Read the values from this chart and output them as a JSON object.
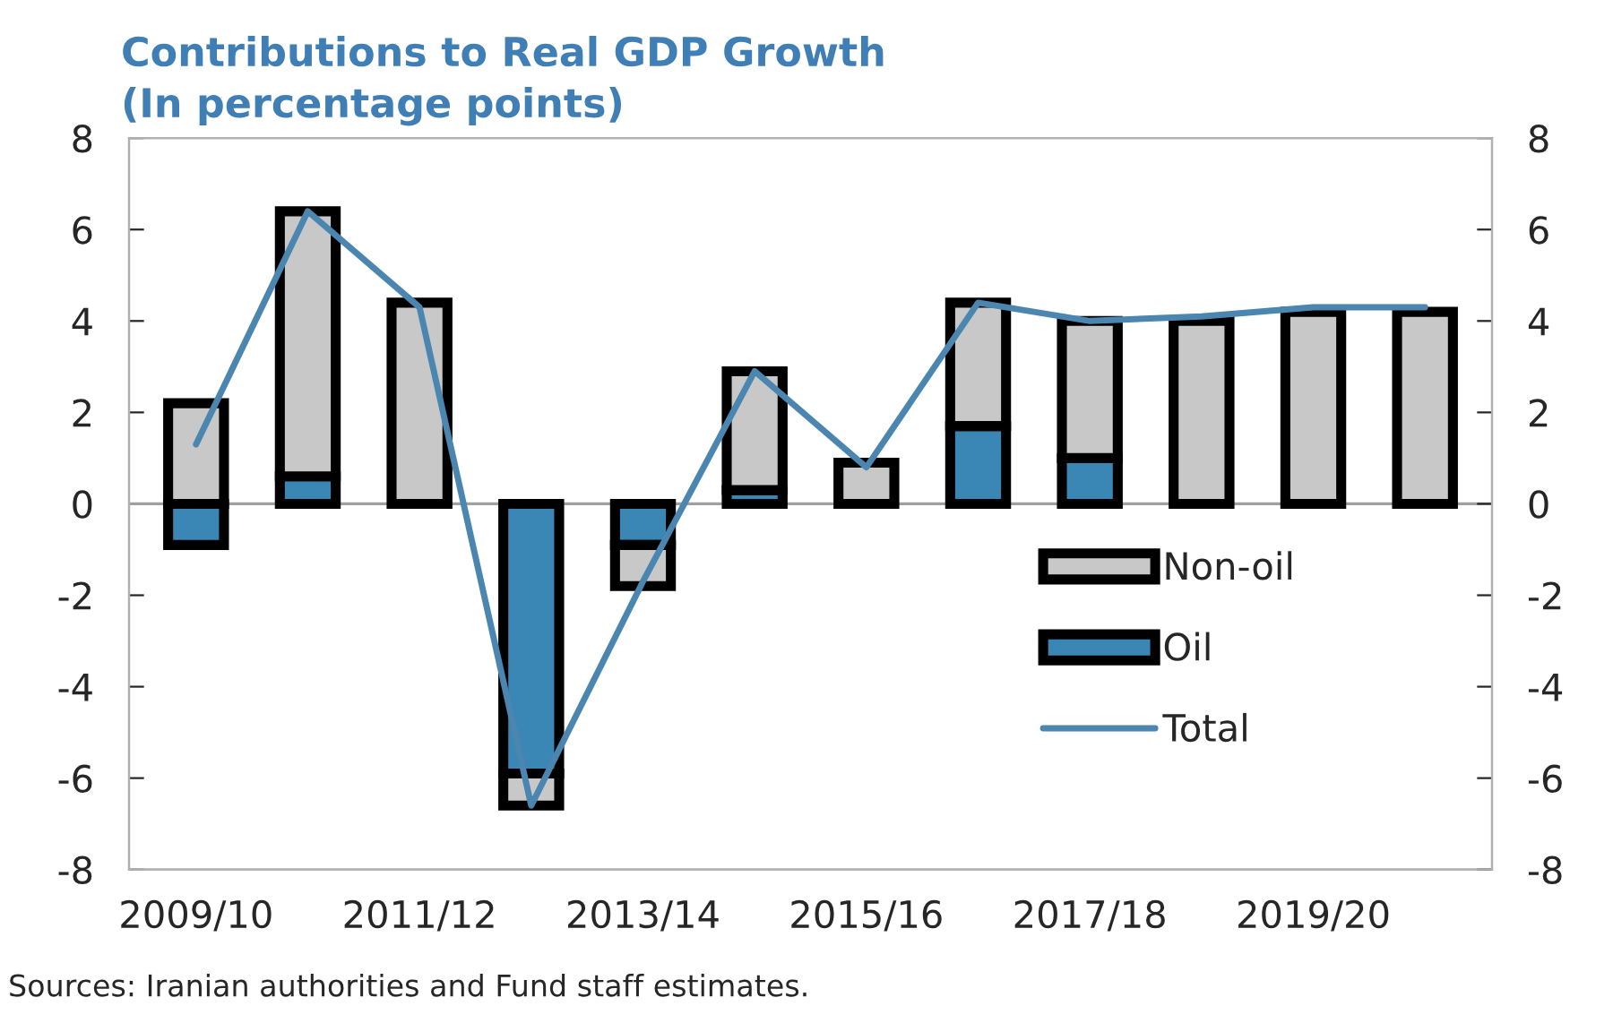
{
  "chart_data": {
    "type": "bar",
    "stacked": true,
    "title": "Contributions to Real GDP Growth",
    "subtitle": "(In percentage points)",
    "categories": [
      "2009/10",
      null,
      "2011/12",
      null,
      "2013/14",
      null,
      "2015/16",
      null,
      "2017/18",
      null,
      "2019/20",
      null
    ],
    "series": [
      {
        "name": "Oil",
        "color": "#3a87b5",
        "values": [
          -0.9,
          0.6,
          null,
          -5.9,
          -0.9,
          0.3,
          null,
          1.7,
          1.0,
          null,
          null,
          null
        ]
      },
      {
        "name": "Non-oil",
        "color": "#c8c8c8",
        "values": [
          2.2,
          5.8,
          4.4,
          -0.7,
          -0.9,
          2.6,
          0.9,
          2.7,
          3.0,
          4.0,
          4.2,
          4.2
        ]
      },
      {
        "name": "Total",
        "type": "line",
        "color": "#4a86b0",
        "values": [
          1.3,
          6.4,
          4.3,
          -6.6,
          -1.7,
          2.9,
          0.8,
          4.4,
          4.0,
          4.1,
          4.3,
          4.3
        ]
      }
    ],
    "ylim": [
      -8,
      8
    ],
    "yticks": [
      -8,
      -6,
      -4,
      -2,
      0,
      2,
      4,
      6,
      8
    ],
    "y2lim": [
      -8,
      8
    ],
    "y2ticks": [
      -8,
      -6,
      -4,
      -2,
      0,
      2,
      4,
      6,
      8
    ],
    "ref_lines": [
      {
        "axis": "y",
        "value": 0,
        "color": "#a0a0a0"
      }
    ],
    "legend": "right",
    "grid": false,
    "annotations": [
      "Sources: Iranian authorities and Fund staff estimates."
    ]
  }
}
